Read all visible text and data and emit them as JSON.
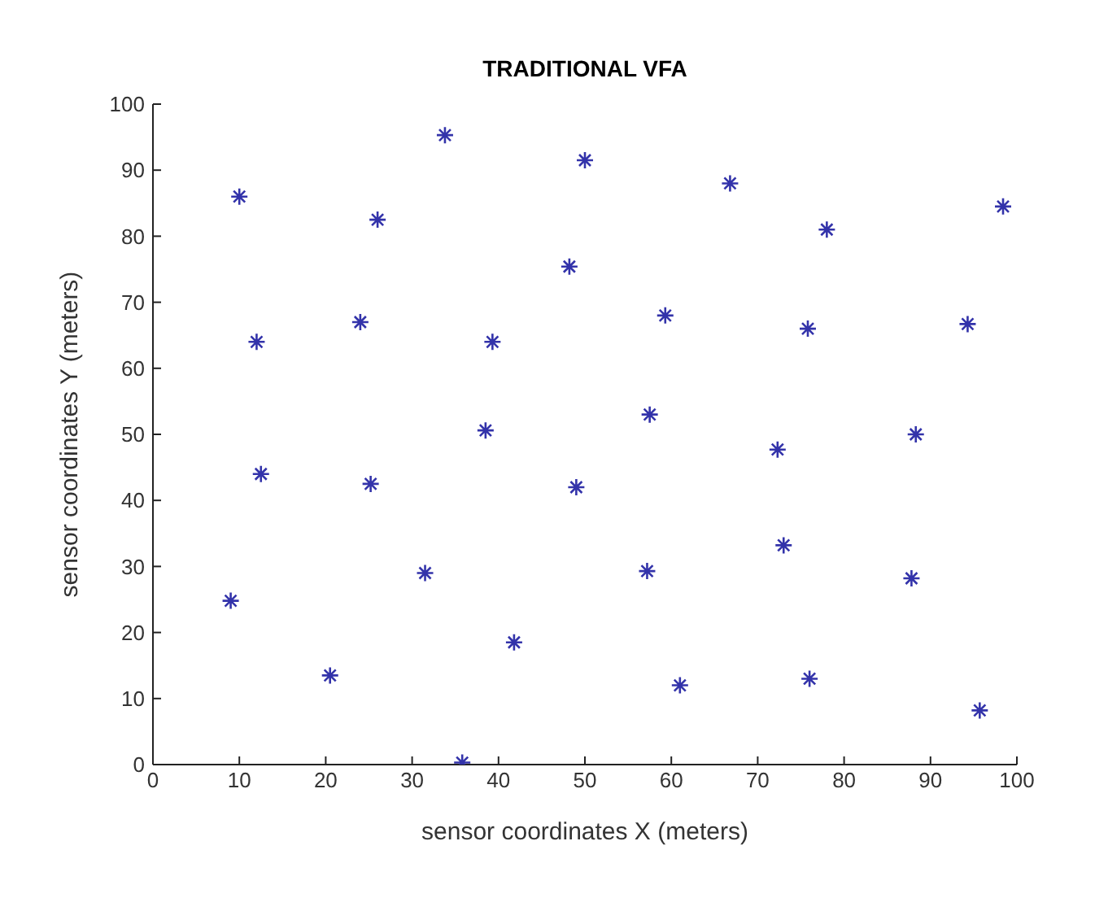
{
  "chart_data": {
    "type": "scatter",
    "title": "TRADITIONAL VFA",
    "xlabel": "sensor coordinates X (meters)",
    "ylabel": "sensor coordinates Y (meters)",
    "x": [
      10,
      12,
      12.5,
      9,
      20.5,
      24,
      26,
      25.2,
      31.5,
      33.8,
      39.3,
      38.5,
      41.8,
      35.8,
      48.2,
      50,
      49,
      57.5,
      59.3,
      57.2,
      61,
      66.8,
      72.3,
      73,
      75.8,
      78,
      76,
      88.3,
      87.8,
      94.3,
      98.4,
      95.7
    ],
    "series": [
      {
        "color": "#3333aa",
        "values": [
          86,
          64,
          44,
          24.8,
          13.5,
          67,
          82.5,
          42.5,
          29,
          95.3,
          64,
          50.6,
          18.5,
          0.3,
          75.4,
          91.5,
          42,
          53,
          68,
          29.3,
          12,
          88,
          47.7,
          33.2,
          66,
          81,
          13,
          50,
          28.2,
          66.7,
          84.5,
          8.2
        ]
      }
    ],
    "xlim": [
      0,
      100
    ],
    "ylim": [
      0,
      100
    ],
    "xticks": [
      0,
      10,
      20,
      30,
      40,
      50,
      60,
      70,
      80,
      90,
      100
    ],
    "yticks": [
      0,
      10,
      20,
      30,
      40,
      50,
      60,
      70,
      80,
      90,
      100
    ],
    "marker": "cross",
    "grid": false,
    "legend": false
  }
}
